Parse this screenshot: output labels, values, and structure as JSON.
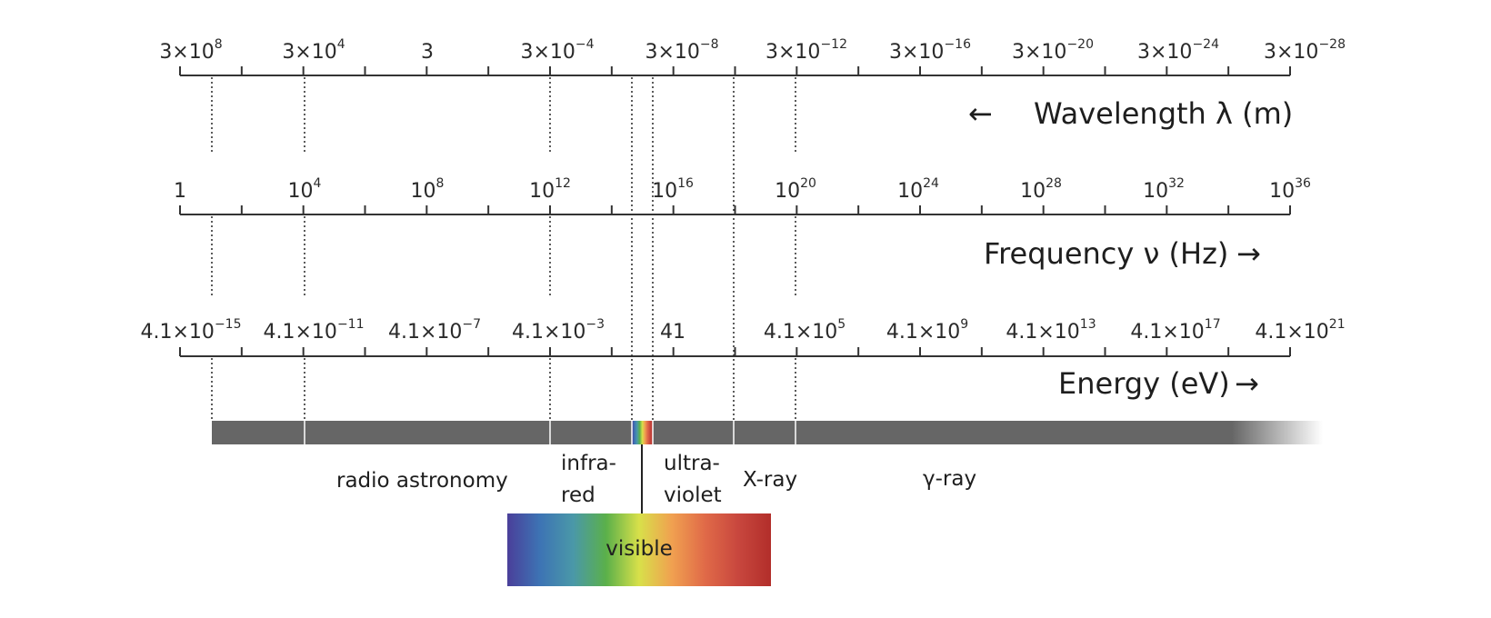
{
  "wavelength_axis": {
    "title": "Wavelength λ (m)",
    "arrow": "←",
    "ticks": [
      {
        "mant": "3×10",
        "exp": "8"
      },
      {
        "mant": "3×10",
        "exp": "4"
      },
      {
        "mant": "3",
        "exp": ""
      },
      {
        "mant": "3×10",
        "exp": "−4"
      },
      {
        "mant": "3×10",
        "exp": "−8"
      },
      {
        "mant": "3×10",
        "exp": "−12"
      },
      {
        "mant": "3×10",
        "exp": "−16"
      },
      {
        "mant": "3×10",
        "exp": "−20"
      },
      {
        "mant": "3×10",
        "exp": "−24"
      },
      {
        "mant": "3×10",
        "exp": "−28"
      }
    ]
  },
  "frequency_axis": {
    "title": "Frequency ν (Hz)",
    "arrow": "→",
    "ticks": [
      {
        "mant": "1",
        "exp": ""
      },
      {
        "mant": "10",
        "exp": "4"
      },
      {
        "mant": "10",
        "exp": "8"
      },
      {
        "mant": "10",
        "exp": "12"
      },
      {
        "mant": "10",
        "exp": "16"
      },
      {
        "mant": "10",
        "exp": "20"
      },
      {
        "mant": "10",
        "exp": "24"
      },
      {
        "mant": "10",
        "exp": "28"
      },
      {
        "mant": "10",
        "exp": "32"
      },
      {
        "mant": "10",
        "exp": "36"
      }
    ]
  },
  "energy_axis": {
    "title": "Energy (eV)",
    "arrow": "→",
    "ticks": [
      {
        "mant": "4.1×10",
        "exp": "−15"
      },
      {
        "mant": "4.1×10",
        "exp": "−11"
      },
      {
        "mant": "4.1×10",
        "exp": "−7"
      },
      {
        "mant": "4.1×10",
        "exp": "−3"
      },
      {
        "mant": "41",
        "exp": ""
      },
      {
        "mant": "4.1×10",
        "exp": "5"
      },
      {
        "mant": "4.1×10",
        "exp": "9"
      },
      {
        "mant": "4.1×10",
        "exp": "13"
      },
      {
        "mant": "4.1×10",
        "exp": "17"
      },
      {
        "mant": "4.1×10",
        "exp": "21"
      }
    ]
  },
  "bands": {
    "radio": "radio astronomy",
    "infrared": [
      "infra-",
      "red"
    ],
    "ultraviolet": [
      "ultra-",
      "violet"
    ],
    "xray": "X-ray",
    "gamma": "γ-ray",
    "visible": "visible"
  },
  "colors": {
    "bar": "#666666",
    "axis": "#333333",
    "spectrum": [
      "#4a3f9a",
      "#3d74b4",
      "#4a98a8",
      "#5bb04a",
      "#d8e04a",
      "#f0a050",
      "#e06a48",
      "#c8473e",
      "#b22e2a"
    ]
  }
}
